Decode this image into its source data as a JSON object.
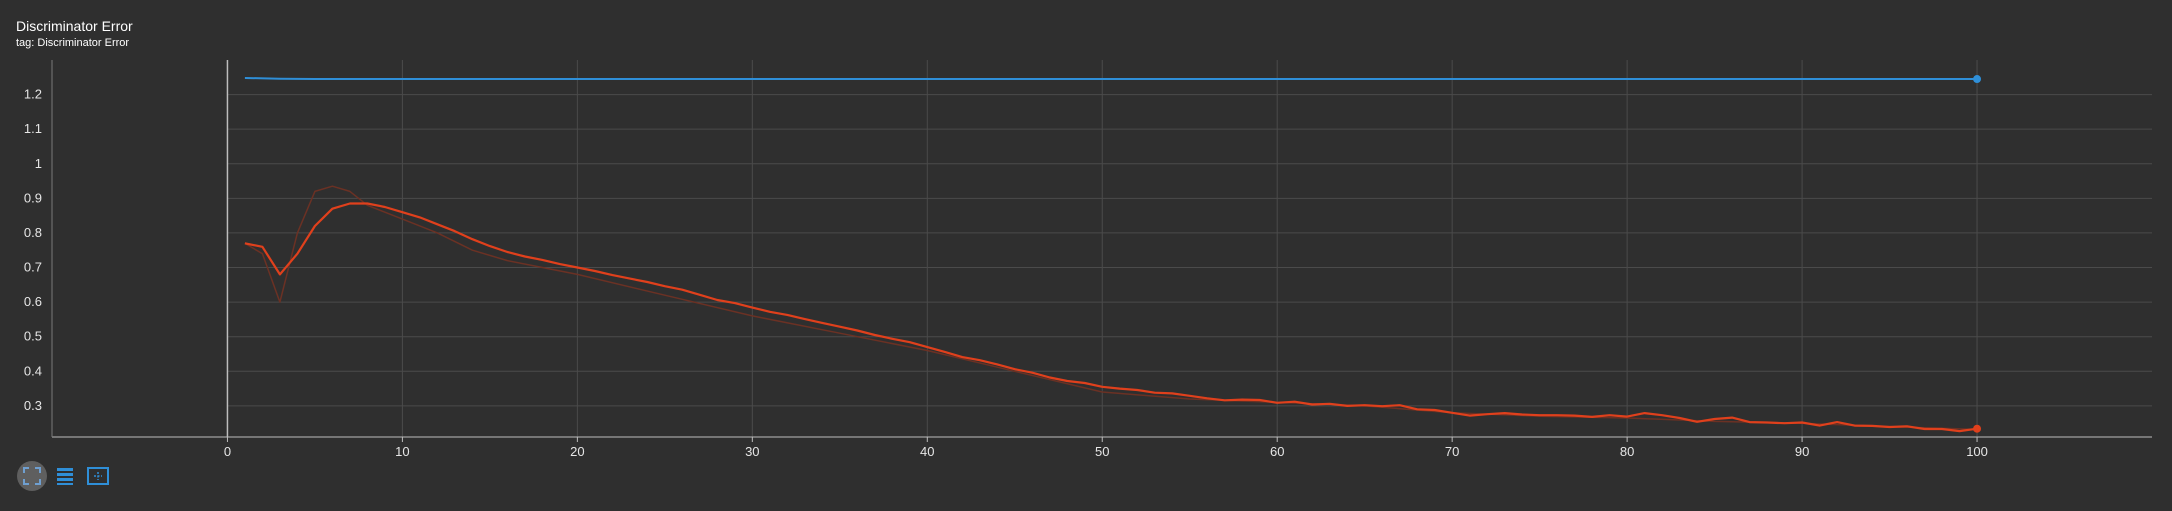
{
  "header": {
    "title": "Discriminator Error",
    "subtitle": "tag: Discriminator Error"
  },
  "toolbar": {
    "icons": [
      "fit-domain-icon",
      "log-scale-icon",
      "zoom-select-icon"
    ]
  },
  "colors": {
    "background": "#2f2f2f",
    "grid": "#4b4b4b",
    "series_blue": "#2f8fd8",
    "series_red": "#e0401c",
    "series_red_raw": "#6b3124"
  },
  "chart_data": {
    "type": "line",
    "title": "Discriminator Error",
    "xlabel": "",
    "ylabel": "",
    "xlim": [
      -13,
      110
    ],
    "ylim": [
      0.21,
      1.3
    ],
    "x_ticks": [
      0,
      10,
      20,
      30,
      40,
      50,
      60,
      70,
      80,
      90,
      100
    ],
    "y_ticks": [
      0.3,
      0.4,
      0.5,
      0.6,
      0.7,
      0.8,
      0.9,
      1,
      1.1,
      1.2
    ],
    "grid": true,
    "series": [
      {
        "key": "blue",
        "x": [
          1,
          3,
          5,
          10,
          20,
          40,
          60,
          80,
          100
        ],
        "values": [
          1.248,
          1.246,
          1.245,
          1.245,
          1.245,
          1.245,
          1.245,
          1.245,
          1.245
        ]
      },
      {
        "key": "red",
        "x": [
          1,
          2,
          3,
          4,
          5,
          6,
          7,
          8,
          9,
          10,
          11,
          12,
          13,
          14,
          15,
          16,
          17,
          18,
          19,
          20,
          21,
          22,
          23,
          24,
          25,
          26,
          27,
          28,
          29,
          30,
          31,
          32,
          33,
          34,
          35,
          36,
          37,
          38,
          39,
          40,
          41,
          42,
          43,
          44,
          45,
          46,
          47,
          48,
          49,
          50,
          51,
          52,
          53,
          54,
          55,
          56,
          57,
          58,
          59,
          60,
          61,
          62,
          63,
          64,
          65,
          66,
          67,
          68,
          69,
          70,
          71,
          72,
          73,
          74,
          75,
          76,
          77,
          78,
          79,
          80,
          81,
          82,
          83,
          84,
          85,
          86,
          87,
          88,
          89,
          90,
          91,
          92,
          93,
          94,
          95,
          96,
          97,
          98,
          99,
          100
        ],
        "values": [
          0.77,
          0.76,
          0.68,
          0.74,
          0.82,
          0.87,
          0.885,
          0.885,
          0.875,
          0.86,
          0.845,
          0.825,
          0.805,
          0.782,
          0.762,
          0.745,
          0.732,
          0.722,
          0.71,
          0.7,
          0.69,
          0.678,
          0.668,
          0.658,
          0.646,
          0.636,
          0.621,
          0.606,
          0.597,
          0.584,
          0.572,
          0.563,
          0.551,
          0.54,
          0.529,
          0.518,
          0.505,
          0.494,
          0.484,
          0.47,
          0.456,
          0.441,
          0.432,
          0.42,
          0.406,
          0.396,
          0.382,
          0.372,
          0.366,
          0.355,
          0.35,
          0.346,
          0.338,
          0.336,
          0.329,
          0.322,
          0.316,
          0.318,
          0.317,
          0.309,
          0.312,
          0.304,
          0.306,
          0.3,
          0.302,
          0.299,
          0.302,
          0.29,
          0.288,
          0.28,
          0.272,
          0.276,
          0.279,
          0.275,
          0.273,
          0.273,
          0.272,
          0.268,
          0.273,
          0.269,
          0.279,
          0.273,
          0.265,
          0.254,
          0.262,
          0.266,
          0.253,
          0.252,
          0.25,
          0.252,
          0.243,
          0.253,
          0.243,
          0.242,
          0.239,
          0.241,
          0.233,
          0.233,
          0.227,
          0.234
        ]
      },
      {
        "key": "red-raw",
        "x": [
          1,
          2,
          3,
          4,
          5,
          6,
          7,
          8,
          9,
          10,
          12,
          14,
          16,
          18,
          20,
          25,
          30,
          35,
          40,
          45,
          50,
          55,
          60,
          65,
          70,
          75,
          80,
          85,
          90,
          95,
          100
        ],
        "values": [
          0.77,
          0.74,
          0.6,
          0.8,
          0.92,
          0.935,
          0.92,
          0.88,
          0.86,
          0.84,
          0.8,
          0.75,
          0.72,
          0.7,
          0.68,
          0.62,
          0.56,
          0.51,
          0.46,
          0.4,
          0.34,
          0.32,
          0.31,
          0.3,
          0.28,
          0.27,
          0.265,
          0.255,
          0.25,
          0.24,
          0.232
        ]
      }
    ]
  }
}
